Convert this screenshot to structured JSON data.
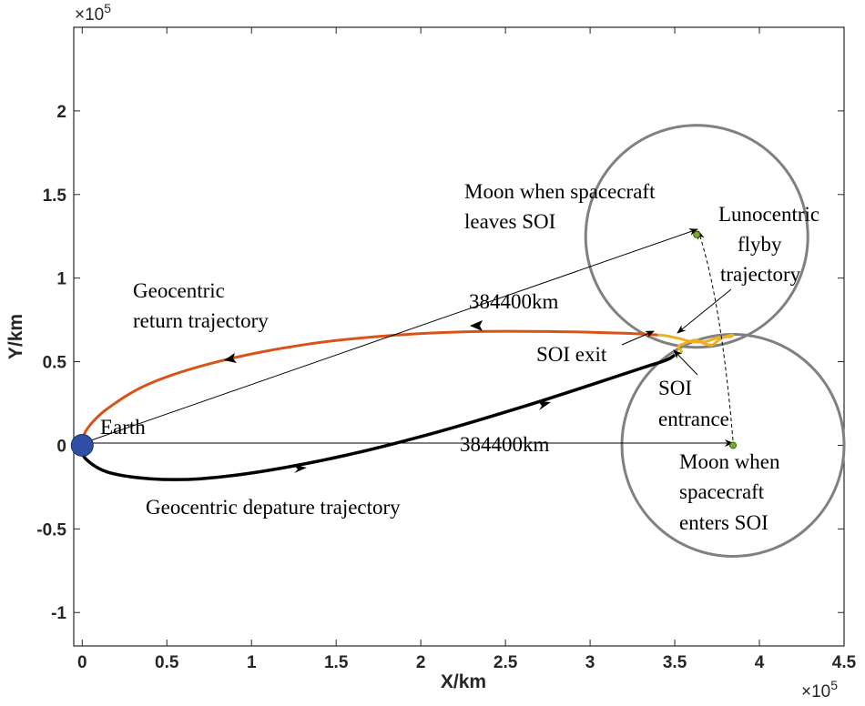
{
  "chart_data": {
    "type": "line",
    "title": "",
    "xlabel": "X/km",
    "ylabel": "Y/km",
    "x_multiplier": "×10",
    "x_multiplier_exp": "5",
    "y_multiplier": "×10",
    "y_multiplier_exp": "5",
    "xlim": [
      -5000,
      450000
    ],
    "ylim": [
      -120000,
      250000
    ],
    "x_ticks": [
      0,
      50000,
      100000,
      150000,
      200000,
      250000,
      300000,
      350000,
      400000,
      450000
    ],
    "x_tick_labels": [
      "0",
      "0.5",
      "1",
      "1.5",
      "2",
      "2.5",
      "3",
      "3.5",
      "4",
      "4.5"
    ],
    "y_ticks": [
      -100000,
      -50000,
      0,
      50000,
      100000,
      150000,
      200000
    ],
    "y_tick_labels": [
      "-1",
      "-0.5",
      "0",
      "0.5",
      "1",
      "1.5",
      "2"
    ],
    "colors": {
      "departure": "#000000",
      "return": "#d95319",
      "flyby": "#edb120",
      "soi": "#808080",
      "earth": "#2e4fa3",
      "moon": "#77ac30"
    },
    "series": [
      {
        "name": "Geocentric depature trajectory",
        "color": "#000000",
        "x": [
          -1000,
          2000,
          15000,
          40000,
          70000,
          110000,
          160000,
          210000,
          260000,
          300000,
          330000,
          345000,
          350000
        ],
        "y": [
          0,
          -8000,
          -16000,
          -20000,
          -20000,
          -15000,
          -5000,
          8000,
          23000,
          36000,
          46000,
          51000,
          54000
        ]
      },
      {
        "name": "Geocentric return trajectory",
        "color": "#d95319",
        "x": [
          -1000,
          3000,
          15000,
          40000,
          80000,
          130000,
          180000,
          230000,
          280000,
          320000,
          340000
        ],
        "y": [
          0,
          10000,
          22000,
          37000,
          50000,
          60000,
          65500,
          68000,
          68000,
          67000,
          66000
        ],
        "arrows": [
          {
            "x": 230000,
            "y": 68000,
            "dir": "left"
          },
          {
            "x": 85000,
            "y": 50000,
            "dir": "left"
          }
        ]
      },
      {
        "name": "Lunocentric flyby trajectory",
        "color": "#edb120",
        "x": [
          350000,
          354000,
          352000,
          356000,
          362000,
          367000,
          372000,
          376000,
          380000,
          384000,
          383000,
          376000,
          368000,
          360000,
          352000,
          345000,
          340000
        ],
        "y": [
          54000,
          56000,
          59000,
          61000,
          63000,
          61000,
          60000,
          63000,
          65000,
          66000,
          65000,
          64500,
          62000,
          62000,
          64000,
          65500,
          66000
        ]
      }
    ],
    "circles": [
      {
        "name": "Moon SOI at spacecraft SOI entrance",
        "cx": 384400,
        "cy": 0,
        "r": 66000
      },
      {
        "name": "Moon SOI when spacecraft leaves SOI",
        "cx": 363000,
        "cy": 125000,
        "r": 66000
      }
    ],
    "points": [
      {
        "name": "Earth",
        "x": 0,
        "y": 0
      },
      {
        "name": "Moon when spacecraft enters SOI",
        "x": 384400,
        "y": 0
      },
      {
        "name": "Moon when spacecraft leaves SOI",
        "x": 363000,
        "y": 126000
      }
    ],
    "annotations": {
      "earth": "Earth",
      "dist1": "384400km",
      "dist2": "384400km",
      "departure": "Geocentric depature trajectory",
      "return_l1": "Geocentric",
      "return_l2": "return trajectory",
      "moon_leave_l1": "Moon when spacecraft",
      "moon_leave_l2": "leaves SOI",
      "luno_l1": "Lunocentric",
      "luno_l2": "flyby",
      "luno_l3": "trajectory",
      "soi_exit": "SOI exit",
      "soi_ent_l1": "SOI",
      "soi_ent_l2": "entrance",
      "moon_enter_l1": "Moon when",
      "moon_enter_l2": "spacecraft",
      "moon_enter_l3": "enters SOI"
    }
  }
}
